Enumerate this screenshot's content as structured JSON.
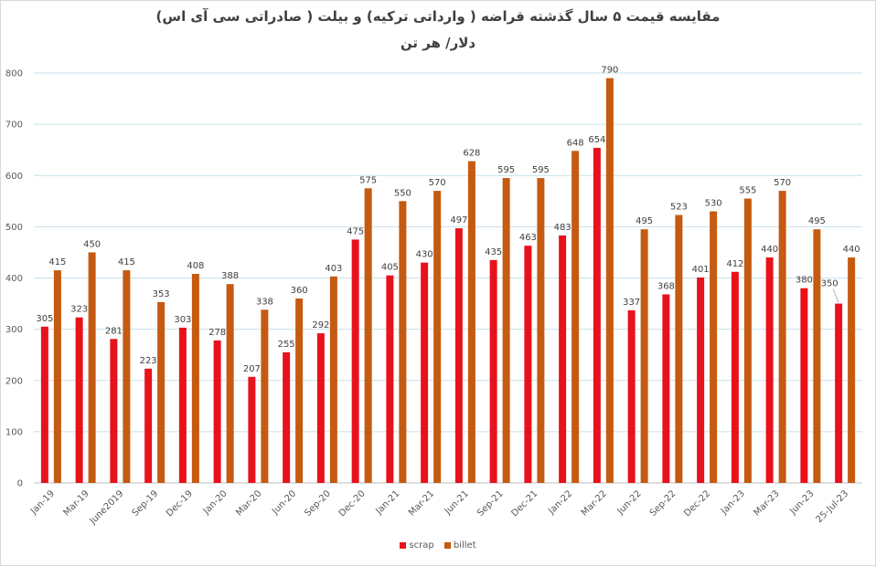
{
  "chart_data": {
    "type": "bar",
    "title": "مقایسه قیمت ۵ سال گذشته قراضه ( وارداتی ترکیه) و بیلت ( صادراتی سی آی اس)",
    "subtitle": "دلار/ هر تن",
    "categories": [
      "Jan-19",
      "Mar-19",
      "June2019",
      "Sep-19",
      "Dec-19",
      "Jan-20",
      "Mar-20",
      "Jun-20",
      "Sep-20",
      "Dec-20",
      "Jan-21",
      "Mar-21",
      "Jun-21",
      "Sep-21",
      "Dec-21",
      "Jan-22",
      "Mar-22",
      "Jun-22",
      "Sep-22",
      "Dec-22",
      "Jan-23",
      "Mar-23",
      "Jun-23",
      "25-Jul-23"
    ],
    "series": [
      {
        "name": "scrap",
        "color": "#e8121c",
        "values": [
          305,
          323,
          281,
          223,
          303,
          278,
          207,
          255,
          292,
          475,
          405,
          430,
          497,
          435,
          463,
          483,
          654,
          337,
          368,
          401,
          412,
          440,
          380,
          350
        ]
      },
      {
        "name": "billet",
        "color": "#c55a11",
        "values": [
          415,
          450,
          415,
          353,
          408,
          388,
          338,
          360,
          403,
          575,
          550,
          570,
          628,
          595,
          595,
          648,
          790,
          495,
          523,
          530,
          555,
          570,
          495,
          440
        ]
      }
    ],
    "ylim": [
      0,
      800
    ],
    "yticks": [
      0,
      100,
      200,
      300,
      400,
      500,
      600,
      700,
      800
    ],
    "grid": true,
    "legend": "bottom"
  }
}
